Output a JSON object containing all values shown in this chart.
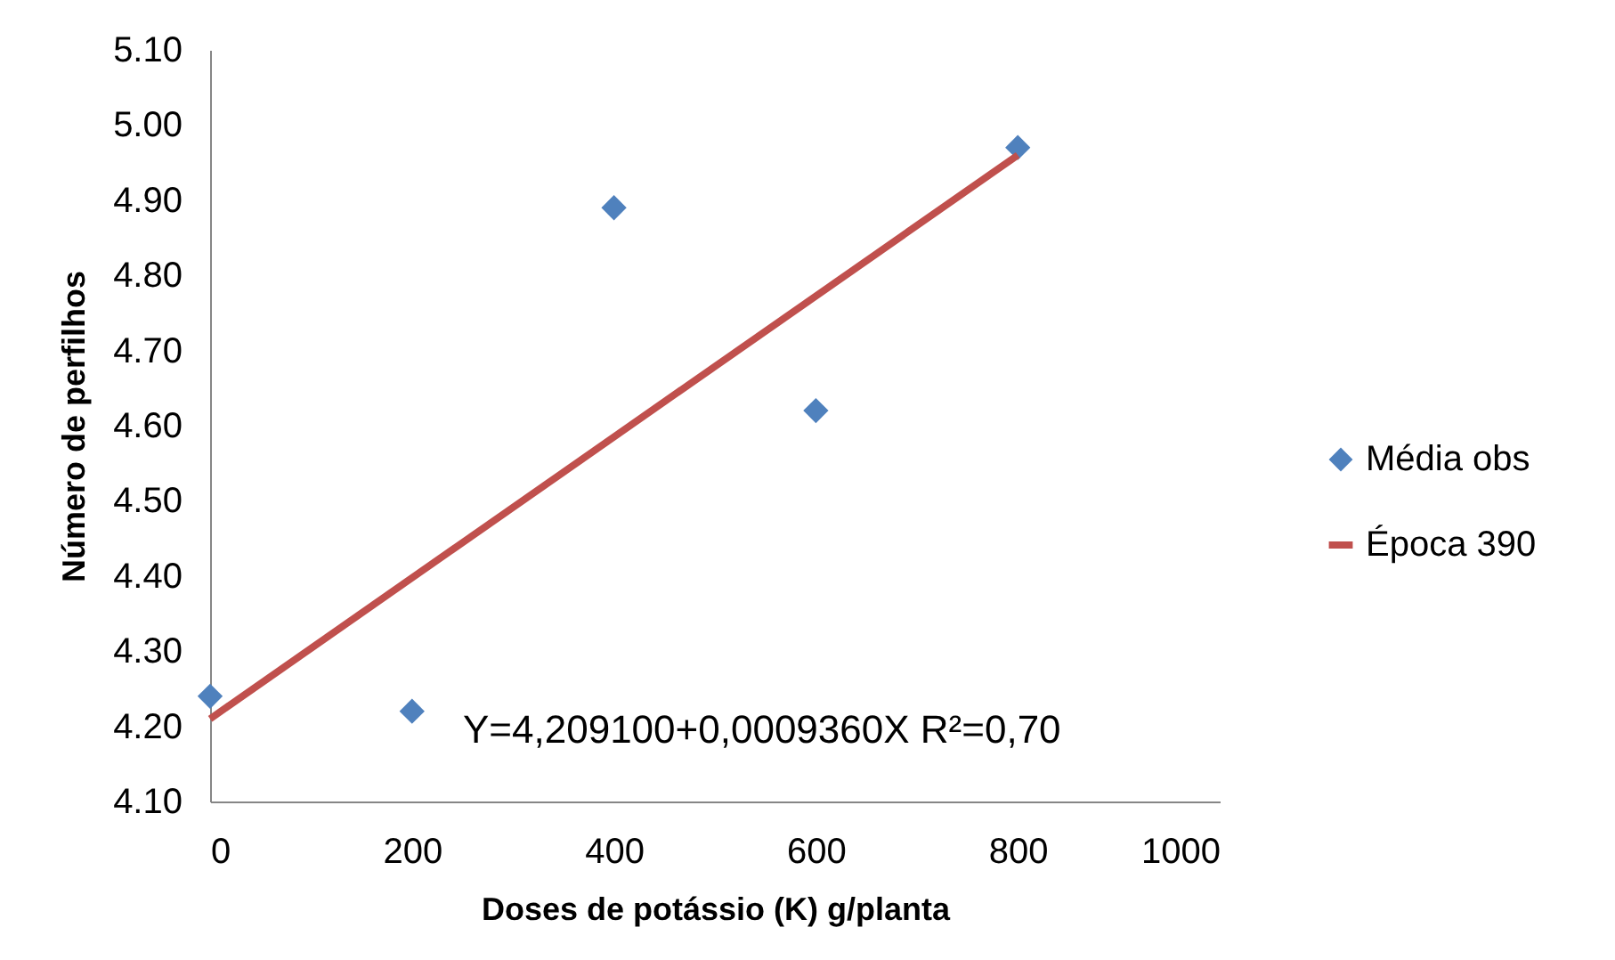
{
  "chart_data": {
    "type": "scatter",
    "xlabel": "Doses de potássio (K) g/planta",
    "ylabel": "Número de perfilhos",
    "xlim": [
      0,
      1000
    ],
    "xticks": [
      0,
      200,
      400,
      600,
      800,
      1000
    ],
    "ylim": [
      4.1,
      5.1
    ],
    "yticks": [
      {
        "value": 4.1,
        "label": "4.10"
      },
      {
        "value": 4.2,
        "label": "4.20"
      },
      {
        "value": 4.3,
        "label": "4.30"
      },
      {
        "value": 4.4,
        "label": "4.40"
      },
      {
        "value": 4.5,
        "label": "4.50"
      },
      {
        "value": 4.6,
        "label": "4.60"
      },
      {
        "value": 4.7,
        "label": "4.70"
      },
      {
        "value": 4.8,
        "label": "4.80"
      },
      {
        "value": 4.9,
        "label": "4.90"
      },
      {
        "value": 5.0,
        "label": "5.00"
      },
      {
        "value": 5.1,
        "label": "5.10"
      }
    ],
    "grid": false,
    "legend": "right",
    "annotations": [
      "Y=4,209100+0,0009360X   R²=0,70"
    ],
    "series": [
      {
        "name": "Média obs",
        "marker": "diamond",
        "color": "#4f81bd",
        "x": [
          0,
          200,
          400,
          600,
          800
        ],
        "values": [
          4.24,
          4.22,
          4.89,
          4.62,
          4.97
        ]
      },
      {
        "name": "Época 390",
        "type": "line",
        "marker": "none",
        "color": "#c0504d",
        "x": [
          0,
          800
        ],
        "values": [
          4.21,
          4.96
        ]
      }
    ]
  }
}
